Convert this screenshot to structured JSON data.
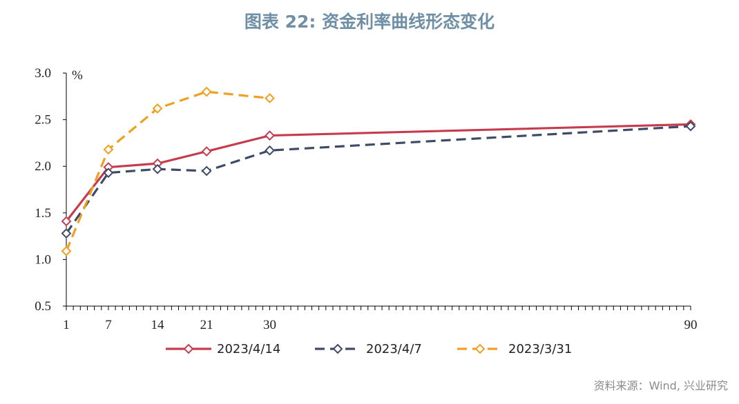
{
  "chart_data": {
    "type": "line",
    "title": "图表 22: 资金利率曲线形态变化",
    "unit": "%",
    "x_ticks": [
      1,
      7,
      14,
      21,
      30,
      90
    ],
    "xlim": [
      1,
      90
    ],
    "ylim": [
      0.5,
      3.0
    ],
    "y_ticks": [
      "3.0",
      "2.5",
      "2.0",
      "1.5",
      "1.0",
      "0.5"
    ],
    "series": [
      {
        "name": "2023/4/14",
        "color": "#c43c4e",
        "style": "solid",
        "x": [
          1,
          7,
          14,
          21,
          30,
          90
        ],
        "values": [
          1.41,
          1.99,
          2.03,
          2.16,
          2.33,
          2.45
        ]
      },
      {
        "name": "2023/4/7",
        "color": "#3d4b66",
        "style": "dashed",
        "x": [
          1,
          7,
          14,
          21,
          30,
          90
        ],
        "values": [
          1.28,
          1.93,
          1.97,
          1.95,
          2.17,
          2.43
        ]
      },
      {
        "name": "2023/3/31",
        "color": "#f0a020",
        "style": "dashed",
        "x": [
          1,
          7,
          14,
          21,
          30
        ],
        "values": [
          1.09,
          2.18,
          2.62,
          2.8,
          2.73
        ]
      }
    ]
  },
  "footer": {
    "source": "资料来源：Wind, 兴业研究"
  }
}
